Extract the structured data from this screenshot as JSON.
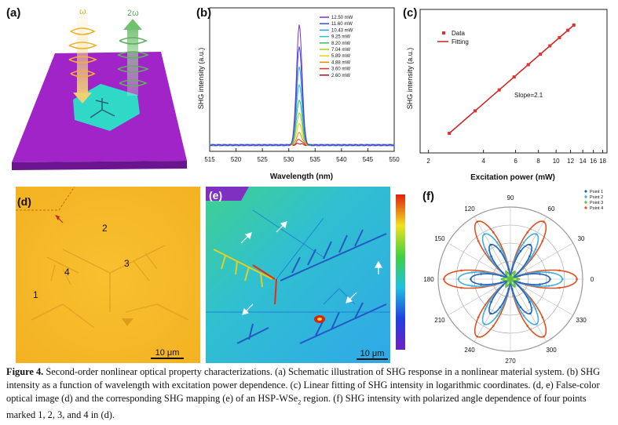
{
  "panel_a": {
    "label": "(a)",
    "omega_label": "ω",
    "two_omega_label": "2ω"
  },
  "panel_b": {
    "label": "(b)",
    "chart_type": "line",
    "xlabel": "Wavelength (nm)",
    "ylabel": "SHG intensity (a.u.)",
    "xlim": [
      515,
      550
    ],
    "xticks": [
      "515",
      "520",
      "525",
      "530",
      "535",
      "540",
      "545",
      "550"
    ],
    "peak_nm": 532,
    "legend": [
      "12.50 mW",
      "11.60 mW",
      "10.43 mW",
      "9.25 mW",
      "8.20 mW",
      "7.04 mW",
      "5.89 mW",
      "4.88 mW",
      "3.60 mW",
      "2.60 mW"
    ],
    "colors": [
      "#7b2fd0",
      "#3050e8",
      "#2a9ef0",
      "#22c0d0",
      "#30c060",
      "#a0d020",
      "#f0d000",
      "#f08000",
      "#e83020",
      "#b01010"
    ]
  },
  "panel_c": {
    "label": "(c)",
    "chart_type": "scatter",
    "xlabel": "Excitation power (mW)",
    "ylabel": "SHG intensity (a.u.)",
    "legend_data": "Data",
    "legend_fit": "Fitting",
    "slope_text": "Slope=2.1",
    "xticks": [
      "2",
      "4",
      "6",
      "8",
      "10",
      "12",
      "14",
      "16",
      "18"
    ],
    "x": [
      2.6,
      3.6,
      4.88,
      5.89,
      7.04,
      8.2,
      9.25,
      10.43,
      11.6,
      12.5
    ]
  },
  "panel_d": {
    "label": "(d)",
    "points": [
      "1",
      "2",
      "3",
      "4"
    ],
    "scale_bar": "10 μm"
  },
  "panel_e": {
    "label": "(e)",
    "scale_bar": "10 μm"
  },
  "panel_f": {
    "label": "(f)",
    "chart_type": "polar",
    "angles": [
      "0",
      "30",
      "60",
      "90",
      "120",
      "150",
      "180",
      "210",
      "240",
      "270",
      "300",
      "330"
    ],
    "legend": [
      "Point 1",
      "Point 2",
      "Point 3",
      "Point 4"
    ],
    "colors": [
      "#2060c0",
      "#40b0e0",
      "#60c040",
      "#e05020"
    ]
  },
  "caption": {
    "fig_label": "Figure 4.",
    "text_1": " Second-order nonlinear optical property characterizations. (a) Schematic illustration of SHG response in a nonlinear material system. (b) SHG intensity as a function of wavelength with excitation power dependence. (c) Linear fitting of SHG intensity in logarithmic coordinates. (d, e) False-color optical image (d) and the corresponding SHG mapping (e) of an HSP-WSe",
    "sub": "2",
    "text_2": " region. (f) SHG intensity with polarized angle dependence of four points marked 1, 2, 3, and 4 in (d)."
  }
}
